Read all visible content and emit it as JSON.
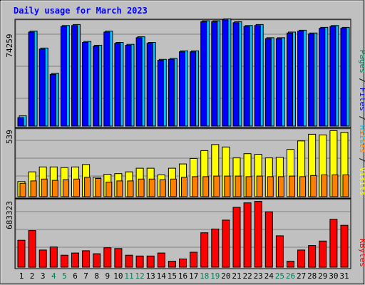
{
  "chart_data": [
    {
      "type": "bar",
      "title": "Daily usage for March 2023",
      "max_label": "74259",
      "series": [
        {
          "name": "Pages",
          "color": "#00805c",
          "values": []
        },
        {
          "name": "Files",
          "color": "#0000ff",
          "values": [
            9,
            100,
            82,
            55,
            106,
            107,
            89,
            85,
            100,
            88,
            86,
            94,
            88,
            70,
            71,
            79,
            79,
            111,
            111,
            113,
            110,
            106,
            107,
            93,
            93,
            99,
            101,
            98,
            104,
            106,
            104
          ]
        },
        {
          "name": "Hits",
          "color": "#00c0ff",
          "values": [
            11,
            101,
            83,
            56,
            107,
            108,
            90,
            86,
            101,
            89,
            87,
            95,
            89,
            71,
            72,
            80,
            80,
            112,
            112,
            114,
            111,
            107,
            108,
            94,
            94,
            100,
            102,
            99,
            105,
            107,
            105
          ]
        }
      ]
    },
    {
      "type": "bar",
      "max_label": "539",
      "series": [
        {
          "name": "Visits",
          "color": "#ffff00",
          "values": [
            25,
            41,
            49,
            49,
            48,
            49,
            53,
            32,
            37,
            38,
            41,
            47,
            47,
            36,
            47,
            54,
            63,
            76,
            86,
            82,
            64,
            71,
            70,
            64,
            65,
            78,
            92,
            103,
            102,
            109,
            106
          ]
        },
        {
          "name": "Sites",
          "color": "#ff8000",
          "values": [
            22,
            26,
            29,
            27,
            28,
            29,
            32,
            30,
            24,
            26,
            26,
            29,
            29,
            28,
            29,
            32,
            33,
            33,
            34,
            34,
            34,
            33,
            34,
            33,
            33,
            34,
            33,
            35,
            36,
            36,
            36
          ]
        }
      ]
    },
    {
      "type": "bar",
      "max_label": "683323",
      "series": [
        {
          "name": "KBytes",
          "color": "#ff0000",
          "values": [
            36,
            49,
            23,
            27,
            16,
            19,
            22,
            18,
            26,
            25,
            16,
            15,
            15,
            19,
            8,
            11,
            20,
            46,
            51,
            63,
            80,
            86,
            88,
            74,
            42,
            8,
            23,
            29,
            35,
            64,
            56
          ]
        }
      ]
    }
  ],
  "x_labels": [
    "1",
    "2",
    "3",
    "4",
    "5",
    "6",
    "7",
    "8",
    "9",
    "10",
    "11",
    "12",
    "13",
    "14",
    "15",
    "16",
    "17",
    "18",
    "19",
    "20",
    "21",
    "22",
    "23",
    "24",
    "25",
    "26",
    "27",
    "28",
    "29",
    "30",
    "31"
  ],
  "weekend_days": [
    "4",
    "5",
    "11",
    "12",
    "18",
    "19",
    "25",
    "26"
  ],
  "colors": {
    "background": "#c0c0c0",
    "title": "#0000ff",
    "weekday_label": "#000000",
    "weekend_label": "#00805c",
    "grid": "#808080"
  }
}
